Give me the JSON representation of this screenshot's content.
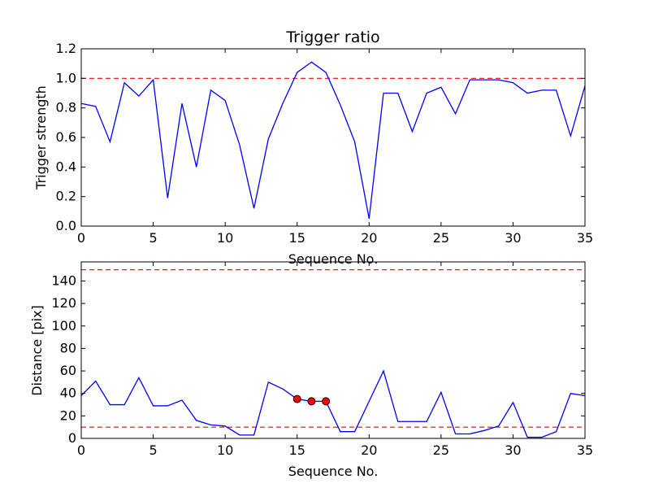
{
  "chart_data": [
    {
      "type": "line",
      "title": "Trigger ratio",
      "xlabel": "Sequence No.",
      "ylabel": "Trigger strength",
      "xlim": [
        0,
        35
      ],
      "ylim": [
        0,
        1.2
      ],
      "xticks": [
        0,
        5,
        10,
        15,
        20,
        25,
        30,
        35
      ],
      "yticks": [
        0.0,
        0.2,
        0.4,
        0.6,
        0.8,
        1.0,
        1.2
      ],
      "ytick_labels": [
        "0.0",
        "0.2",
        "0.4",
        "0.6",
        "0.8",
        "1.0",
        "1.2"
      ],
      "grid": false,
      "series": [
        {
          "color": "#0000ff",
          "x": [
            0,
            1,
            2,
            3,
            4,
            5,
            6,
            7,
            8,
            9,
            10,
            11,
            12,
            13,
            14,
            15,
            16,
            17,
            18,
            19,
            20,
            21,
            22,
            23,
            24,
            25,
            26,
            27,
            28,
            29,
            30,
            31,
            32,
            33,
            34,
            35
          ],
          "values": [
            0.83,
            0.81,
            0.57,
            0.97,
            0.88,
            0.99,
            0.19,
            0.83,
            0.4,
            0.92,
            0.85,
            0.55,
            0.12,
            0.59,
            0.83,
            1.04,
            1.11,
            1.04,
            0.82,
            0.57,
            0.05,
            0.9,
            0.9,
            0.64,
            0.9,
            0.94,
            0.76,
            0.99,
            0.99,
            0.99,
            0.97,
            0.9,
            0.92,
            0.92,
            0.61,
            0.95
          ]
        }
      ],
      "reference_lines": [
        {
          "orientation": "horizontal",
          "value": 1.0,
          "color": "#ff0000",
          "style": "dashed"
        }
      ]
    },
    {
      "type": "line",
      "title": "",
      "xlabel": "Sequence No.",
      "ylabel": "Distance [pix]",
      "xlim": [
        0,
        35
      ],
      "ylim": [
        0,
        157
      ],
      "xticks": [
        0,
        5,
        10,
        15,
        20,
        25,
        30,
        35
      ],
      "yticks": [
        0,
        20,
        40,
        60,
        80,
        100,
        120,
        140
      ],
      "ytick_labels": [
        "0",
        "20",
        "40",
        "60",
        "80",
        "100",
        "120",
        "140"
      ],
      "grid": false,
      "series": [
        {
          "color": "#0000ff",
          "x": [
            0,
            1,
            2,
            3,
            4,
            5,
            6,
            7,
            8,
            9,
            10,
            11,
            12,
            13,
            14,
            15,
            16,
            17,
            18,
            19,
            20,
            21,
            22,
            23,
            24,
            25,
            26,
            27,
            28,
            29,
            30,
            31,
            32,
            33,
            34,
            35
          ],
          "values": [
            38,
            51,
            30,
            30,
            54,
            29,
            29,
            34,
            16,
            12,
            11,
            3,
            3,
            50,
            44,
            35,
            33,
            33,
            6,
            6,
            33,
            60,
            15,
            15,
            15,
            41,
            4,
            4,
            7,
            11,
            32,
            1,
            1,
            6,
            40,
            38
          ]
        }
      ],
      "markers": {
        "color": "#ff0000",
        "x": [
          15,
          16,
          17
        ],
        "values": [
          35,
          33,
          33
        ]
      },
      "reference_lines": [
        {
          "orientation": "horizontal",
          "value": 150,
          "color": "#ff0000",
          "style": "dashed"
        },
        {
          "orientation": "horizontal",
          "value": 10,
          "color": "#ff0000",
          "style": "dashed"
        }
      ]
    }
  ]
}
